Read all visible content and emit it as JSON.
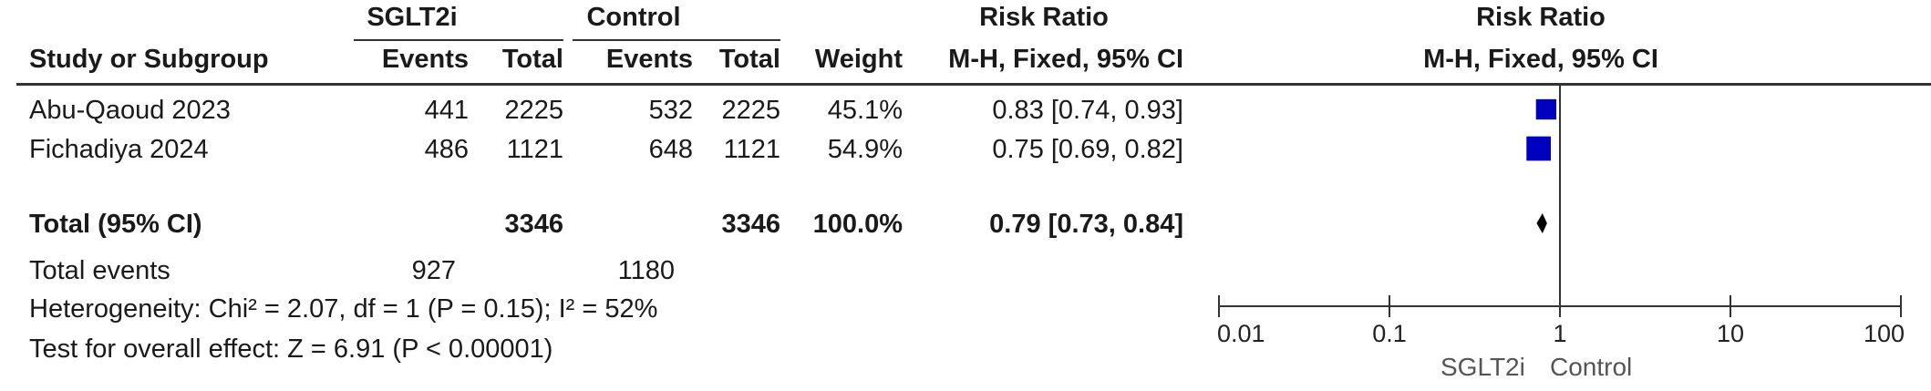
{
  "groups": {
    "experimental": "SGLT2i",
    "control": "Control",
    "effect_measure": "Risk Ratio",
    "plot_measure": "Risk Ratio"
  },
  "columns": {
    "study": "Study or Subgroup",
    "events_exp": "Events",
    "total_exp": "Total",
    "events_ctrl": "Events",
    "total_ctrl": "Total",
    "weight": "Weight",
    "method": "M-H, Fixed, 95% CI",
    "plot_method": "M-H, Fixed, 95% CI"
  },
  "studies": [
    {
      "name": "Abu-Qaoud 2023",
      "events_exp": "441",
      "total_exp": "2225",
      "events_ctrl": "532",
      "total_ctrl": "2225",
      "weight": "45.1%",
      "ci_text": "0.83 [0.74, 0.93]"
    },
    {
      "name": "Fichadiya 2024",
      "events_exp": "486",
      "total_exp": "1121",
      "events_ctrl": "648",
      "total_ctrl": "1121",
      "weight": "54.9%",
      "ci_text": "0.75 [0.69, 0.82]"
    }
  ],
  "total": {
    "label": "Total (95% CI)",
    "total_exp": "3346",
    "total_ctrl": "3346",
    "weight": "100.0%",
    "ci_text": "0.79 [0.73, 0.84]"
  },
  "total_events": {
    "label": "Total events",
    "exp": "927",
    "ctrl": "1180"
  },
  "heterogeneity": "Heterogeneity: Chi² = 2.07, df = 1 (P = 0.15); I² = 52%",
  "overall_effect": "Test for overall effect: Z = 6.91 (P < 0.00001)",
  "axis": {
    "favours_left": "SGLT2i",
    "favours_right": "Control"
  },
  "chart_data": {
    "type": "forest",
    "scale": "log",
    "xlim": [
      0.01,
      100
    ],
    "ticks": [
      {
        "value": 0.01,
        "label": "0.01"
      },
      {
        "value": 0.1,
        "label": "0.1"
      },
      {
        "value": 1,
        "label": "1"
      },
      {
        "value": 10,
        "label": "10"
      },
      {
        "value": 100,
        "label": "100"
      }
    ],
    "reference_line": 1,
    "studies": [
      {
        "name": "Abu-Qaoud 2023",
        "rr": 0.83,
        "lower": 0.74,
        "upper": 0.93,
        "weight": 45.1
      },
      {
        "name": "Fichadiya 2024",
        "rr": 0.75,
        "lower": 0.69,
        "upper": 0.82,
        "weight": 54.9
      }
    ],
    "pooled": {
      "rr": 0.79,
      "lower": 0.73,
      "upper": 0.84
    },
    "marker_color": "#0000c0"
  }
}
